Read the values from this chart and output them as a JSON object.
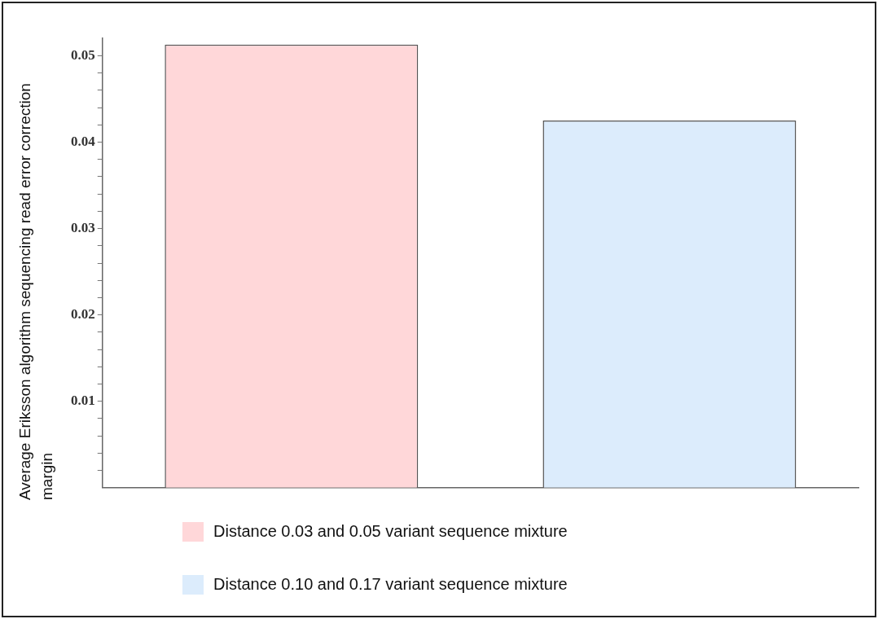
{
  "chart_data": {
    "type": "bar",
    "ylabel": "Average Eriksson algorithm sequencing read error correction margin",
    "categories": [
      null,
      null
    ],
    "series": [
      {
        "name": "Distance 0.03 and 0.05 variant sequence mixture",
        "color": "#ffd7d9",
        "values": [
          0.0513,
          null
        ]
      },
      {
        "name": "Distance 0.10 and 0.17 variant sequence mixture",
        "color": "#dcecfc",
        "values": [
          null,
          0.0425
        ]
      }
    ],
    "ylim": [
      0,
      0.052
    ],
    "yticks": [
      {
        "value": 0.002,
        "label": null
      },
      {
        "value": 0.004,
        "label": null
      },
      {
        "value": 0.006,
        "label": null
      },
      {
        "value": 0.008,
        "label": null
      },
      0.01,
      {
        "value": 0.012,
        "label": null
      },
      {
        "value": 0.014,
        "label": null
      },
      {
        "value": 0.016,
        "label": null
      },
      {
        "value": 0.018,
        "label": null
      },
      0.02,
      {
        "value": 0.022,
        "label": null
      },
      {
        "value": 0.024,
        "label": null
      },
      {
        "value": 0.026,
        "label": null
      },
      {
        "value": 0.028,
        "label": null
      },
      0.03,
      {
        "value": 0.032,
        "label": null
      },
      {
        "value": 0.034,
        "label": null
      },
      {
        "value": 0.036,
        "label": null
      },
      {
        "value": 0.038,
        "label": null
      },
      0.04,
      {
        "value": 0.042,
        "label": null
      },
      {
        "value": 0.044,
        "label": null
      },
      {
        "value": 0.046,
        "label": null
      },
      {
        "value": 0.048,
        "label": null
      },
      0.05
    ],
    "grid": false,
    "legend": "bottom"
  }
}
